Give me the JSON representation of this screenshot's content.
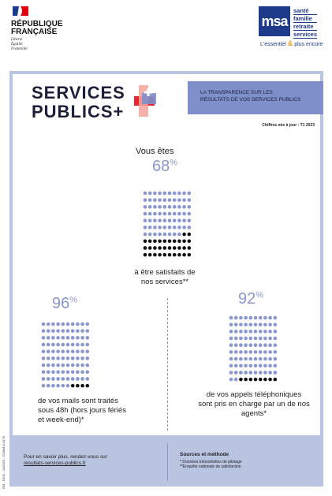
{
  "header": {
    "republic": [
      "RÉPUBLIQUE",
      "FRANÇAISE"
    ],
    "motto": [
      "Liberté",
      "Égalité",
      "Fraternité"
    ],
    "logo": "msa",
    "logo_words": [
      "santé",
      "famille",
      "retraite",
      "services"
    ],
    "tagline_left": "L'essentiel",
    "tagline_amp": "&",
    "tagline_right": "plus encore"
  },
  "banner": {
    "title": [
      "SERVICES",
      "PUBLICS+"
    ],
    "subtitle": [
      "LA TRANSPARENCE SUR LES",
      "RÉSULTATS DE VOS SERVICES PUBLICS"
    ],
    "updated": "Chiffres mis à jour : T1 2023"
  },
  "intro": "Vous êtes",
  "dot_colors": {
    "filled": "#8a96cf",
    "rest": "#111111"
  },
  "stats": [
    {
      "value": 68,
      "unit": "%",
      "text": [
        "à être satisfaits de",
        "nos services**"
      ]
    },
    {
      "value": 96,
      "unit": "%",
      "text": [
        "de vos mails sont traités",
        "sous 48h (hors jours fériés",
        "et week-end)*"
      ]
    },
    {
      "value": 92,
      "unit": "%",
      "text": [
        "de vos appels téléphoniques",
        "sont pris en charge par un de nos",
        "agents*"
      ]
    }
  ],
  "footer": {
    "more": "Pour en savoir plus, rendez-vous sur",
    "link": "resultats-services-publics.fr",
    "sources_title": "Sources et méthode",
    "sources": [
      "* Données trimestrielles de pilotage",
      "**Enquête nationale de satisfaction"
    ]
  },
  "side_code": "RM - DCIX - 11/2023 - COMM.A.0179"
}
